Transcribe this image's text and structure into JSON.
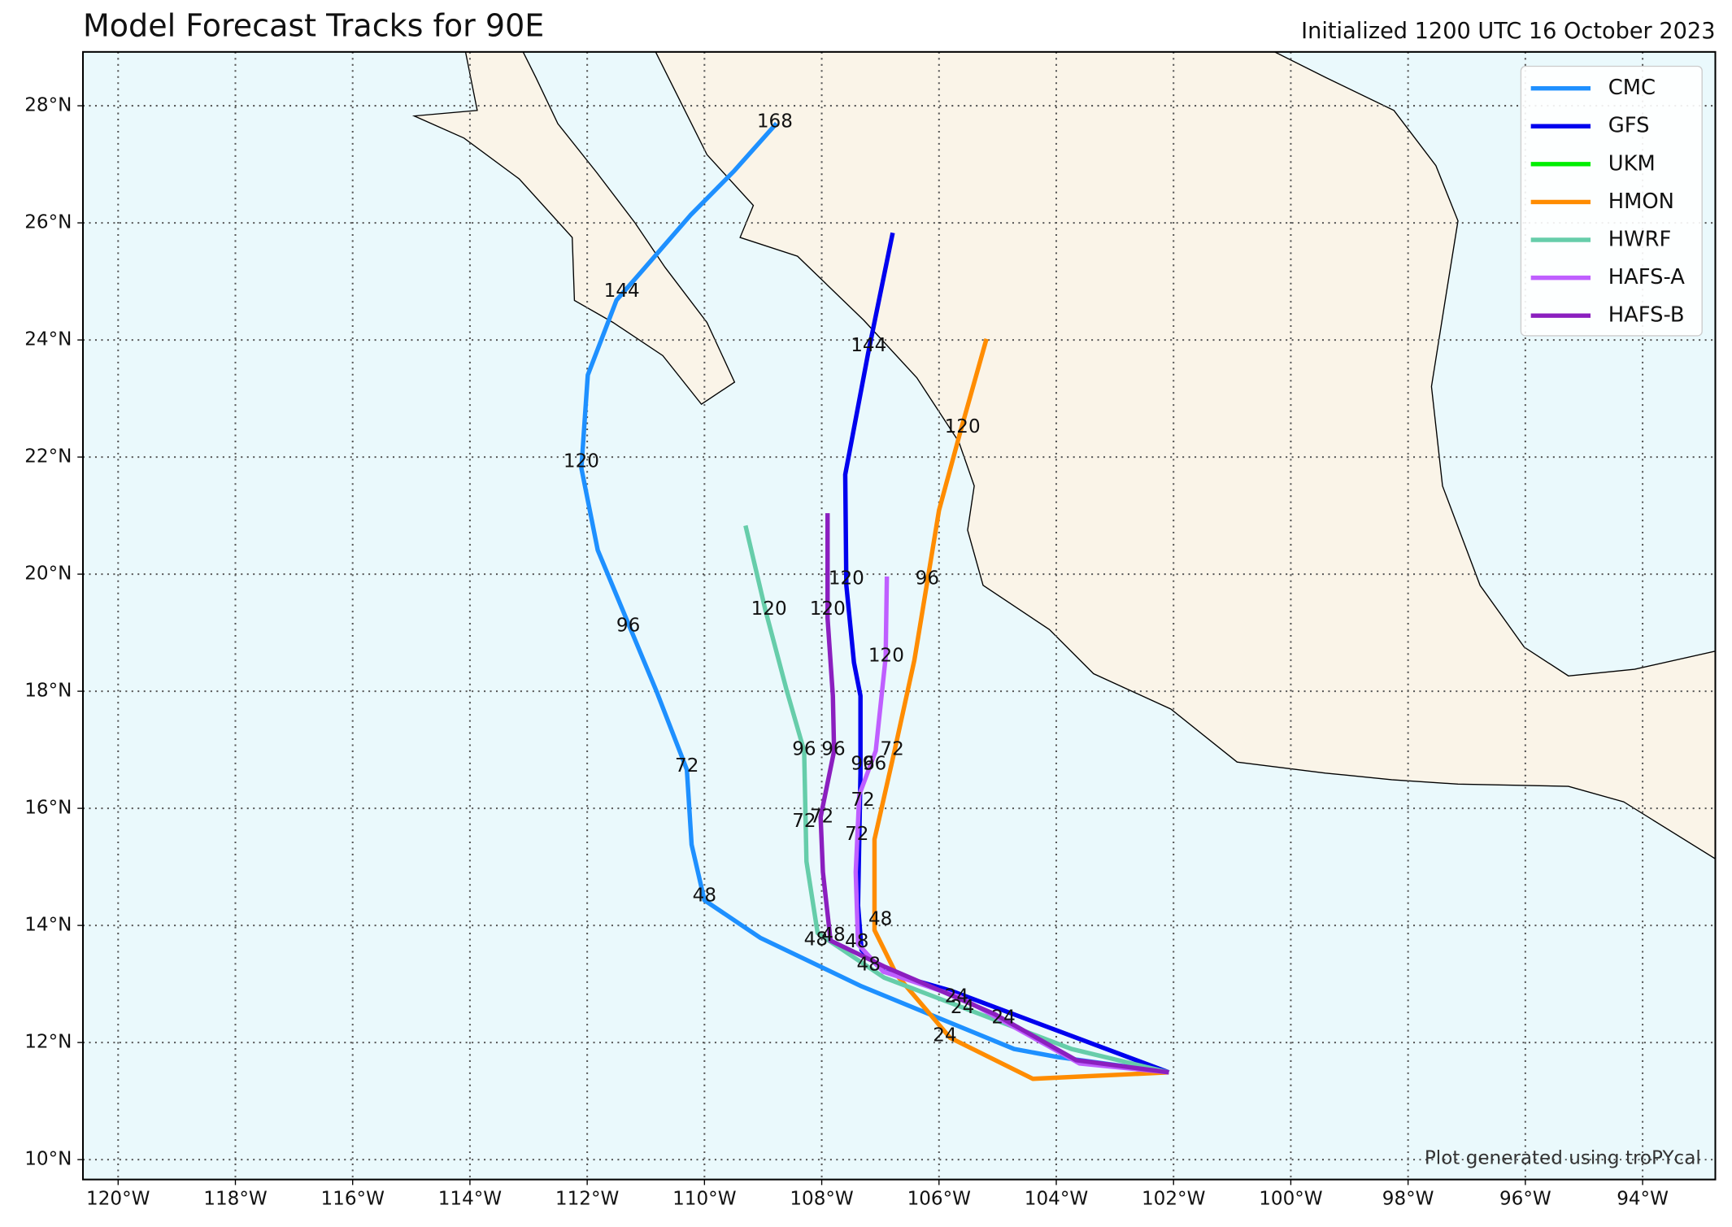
{
  "chart_data": {
    "type": "track",
    "title": "Model Forecast Tracks for 90E",
    "subtitle": "Initialized 1200 UTC 16 October 2023",
    "credit": "Plot generated using troPYcal",
    "xlim": [
      -120.6,
      -92.76
    ],
    "ylim": [
      9.66,
      28.92
    ],
    "xticks": [
      {
        "value": -120,
        "label": "120°W"
      },
      {
        "value": -118,
        "label": "118°W"
      },
      {
        "value": -116,
        "label": "116°W"
      },
      {
        "value": -114,
        "label": "114°W"
      },
      {
        "value": -112,
        "label": "112°W"
      },
      {
        "value": -110,
        "label": "110°W"
      },
      {
        "value": -108,
        "label": "108°W"
      },
      {
        "value": -106,
        "label": "106°W"
      },
      {
        "value": -104,
        "label": "104°W"
      },
      {
        "value": -102,
        "label": "102°W"
      },
      {
        "value": -100,
        "label": "100°W"
      },
      {
        "value": -98,
        "label": "98°W"
      },
      {
        "value": -96,
        "label": "96°W"
      },
      {
        "value": -94,
        "label": "94°W"
      }
    ],
    "yticks": [
      {
        "value": 10,
        "label": "10°N"
      },
      {
        "value": 12,
        "label": "12°N"
      },
      {
        "value": 14,
        "label": "14°N"
      },
      {
        "value": 16,
        "label": "16°N"
      },
      {
        "value": 18,
        "label": "18°N"
      },
      {
        "value": 20,
        "label": "20°N"
      },
      {
        "value": 22,
        "label": "22°N"
      },
      {
        "value": 24,
        "label": "24°N"
      },
      {
        "value": 26,
        "label": "26°N"
      },
      {
        "value": 28,
        "label": "28°N"
      }
    ],
    "grid": true,
    "legend": "upper right",
    "series": [
      {
        "name": "CMC",
        "color": "#1e90ff",
        "lon": [
          -102.08,
          -103.97,
          -104.72,
          -107.32,
          -109.05,
          -110.0,
          -110.22,
          -110.3,
          -110.81,
          -111.82,
          -112.1,
          -111.99,
          -111.5,
          -111.09,
          -110.24,
          -109.49,
          -108.77
        ],
        "lat": [
          11.49,
          11.75,
          11.89,
          12.96,
          13.79,
          14.43,
          15.38,
          16.66,
          17.98,
          20.41,
          21.81,
          23.4,
          24.68,
          25.15,
          26.13,
          26.89,
          27.7
        ],
        "labels": [
          {
            "lon": -110.0,
            "lat": 14.5,
            "hour": 48
          },
          {
            "lon": -110.3,
            "lat": 16.72,
            "hour": 72
          },
          {
            "lon": -111.3,
            "lat": 19.11,
            "hour": 96
          },
          {
            "lon": -112.1,
            "lat": 21.92,
            "hour": 120
          },
          {
            "lon": -111.41,
            "lat": 24.83,
            "hour": 144
          },
          {
            "lon": -108.8,
            "lat": 27.72,
            "hour": 168
          }
        ]
      },
      {
        "name": "GFS",
        "color": "#0000ee",
        "lon": [
          -102.08,
          -105.81,
          -106.94,
          -107.32,
          -107.38,
          -107.34,
          -107.34,
          -107.45,
          -107.58,
          -107.6,
          -107.21,
          -106.79
        ],
        "lat": [
          11.49,
          12.89,
          13.21,
          13.58,
          14.34,
          16.6,
          17.92,
          18.49,
          19.81,
          21.7,
          23.77,
          25.83
        ],
        "labels": [
          {
            "lon": -105.7,
            "lat": 12.78,
            "hour": 24
          },
          {
            "lon": -107.2,
            "lat": 13.32,
            "hour": 48
          },
          {
            "lon": -107.4,
            "lat": 15.55,
            "hour": 72
          },
          {
            "lon": -107.3,
            "lat": 16.75,
            "hour": 96
          },
          {
            "lon": -107.58,
            "lat": 19.92,
            "hour": 120
          },
          {
            "lon": -107.2,
            "lat": 23.9,
            "hour": 144
          }
        ]
      },
      {
        "name": "UKM",
        "color": "#00ee00"
      },
      {
        "name": "HMON",
        "color": "#ff8c00",
        "lon": [
          -102.08,
          -104.4,
          -105.81,
          -106.72,
          -107.1,
          -107.1,
          -106.76,
          -106.42,
          -106.0,
          -105.63,
          -105.19
        ],
        "lat": [
          11.49,
          11.38,
          12.08,
          13.15,
          13.92,
          15.47,
          16.98,
          18.53,
          21.09,
          22.45,
          24.02
        ],
        "labels": [
          {
            "lon": -105.9,
            "lat": 12.11,
            "hour": 24
          },
          {
            "lon": -107.0,
            "lat": 14.1,
            "hour": 48
          },
          {
            "lon": -106.8,
            "lat": 17.0,
            "hour": 72
          },
          {
            "lon": -106.2,
            "lat": 19.92,
            "hour": 96
          },
          {
            "lon": -105.6,
            "lat": 22.51,
            "hour": 120
          }
        ]
      },
      {
        "name": "HWRF",
        "color": "#66cdaa",
        "lon": [
          -102.08,
          -103.74,
          -106.94,
          -108.07,
          -108.26,
          -108.3,
          -108.6,
          -108.96,
          -109.3
        ],
        "lat": [
          11.49,
          11.89,
          13.11,
          13.87,
          15.09,
          16.98,
          18.02,
          19.38,
          20.83
        ],
        "labels": [
          {
            "lon": -108.1,
            "lat": 13.75,
            "hour": 48
          },
          {
            "lon": -108.3,
            "lat": 15.77,
            "hour": 72
          },
          {
            "lon": -108.3,
            "lat": 17.0,
            "hour": 96
          },
          {
            "lon": -108.9,
            "lat": 19.4,
            "hour": 120
          }
        ]
      },
      {
        "name": "HAFS-A",
        "color": "#bf5fff",
        "lon": [
          -102.08,
          -103.6,
          -105.63,
          -106.95,
          -107.38,
          -107.42,
          -107.36,
          -107.08,
          -106.91,
          -106.89
        ],
        "lat": [
          11.49,
          11.64,
          12.77,
          13.21,
          13.68,
          14.91,
          16.23,
          16.98,
          18.58,
          19.96
        ],
        "labels": [
          {
            "lon": -105.6,
            "lat": 12.59,
            "hour": 24
          },
          {
            "lon": -107.4,
            "lat": 13.72,
            "hour": 48
          },
          {
            "lon": -107.3,
            "lat": 16.13,
            "hour": 72
          },
          {
            "lon": -107.1,
            "lat": 16.75,
            "hour": 96
          },
          {
            "lon": -106.9,
            "lat": 18.6,
            "hour": 120
          }
        ]
      },
      {
        "name": "HAFS-B",
        "color": "#8b1fbf",
        "lon": [
          -102.08,
          -103.66,
          -105.06,
          -106.94,
          -107.85,
          -107.98,
          -108.02,
          -107.79,
          -107.81,
          -107.9,
          -107.9
        ],
        "lat": [
          11.49,
          11.7,
          12.49,
          13.3,
          13.74,
          14.91,
          15.85,
          16.98,
          17.92,
          19.25,
          21.04
        ],
        "labels": [
          {
            "lon": -104.9,
            "lat": 12.42,
            "hour": 24
          },
          {
            "lon": -107.8,
            "lat": 13.83,
            "hour": 48
          },
          {
            "lon": -108.0,
            "lat": 15.85,
            "hour": 72
          },
          {
            "lon": -107.8,
            "lat": 17.0,
            "hour": 96
          },
          {
            "lon": -107.9,
            "lat": 19.4,
            "hour": 120
          }
        ]
      }
    ]
  }
}
